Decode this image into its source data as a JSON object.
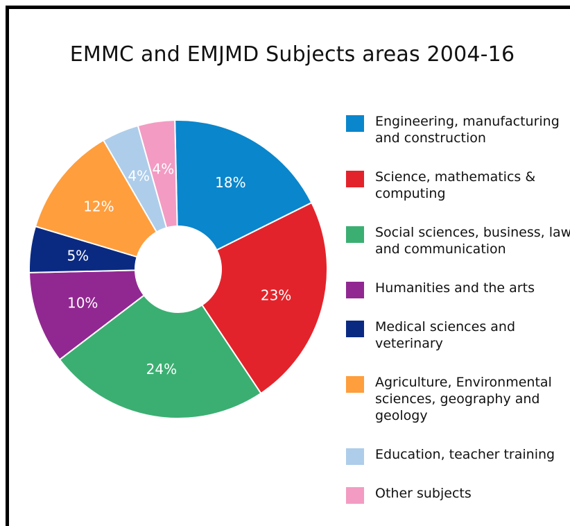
{
  "chart_data": {
    "type": "pie",
    "variant": "donut",
    "title": "EMMC and EMJMD Subjects areas 2004-16",
    "legend_position": "right",
    "series": [
      {
        "name": "Engineering, manufacturing and construction",
        "label": "18%",
        "value": 18,
        "color": "#0A86CC"
      },
      {
        "name": "Science, mathematics & computing",
        "label": "23%",
        "value": 23,
        "color": "#E3232B"
      },
      {
        "name": "Social sciences, business, law and communication",
        "label": "24%",
        "value": 24,
        "color": "#3BAF72"
      },
      {
        "name": "Humanities and the arts",
        "label": "10%",
        "value": 10,
        "color": "#912891"
      },
      {
        "name": "Medical sciences and veterinary",
        "label": "5%",
        "value": 5,
        "color": "#0A2A82"
      },
      {
        "name": "Agriculture, Environmental sciences, geography and geology",
        "label": "12%",
        "value": 12,
        "color": "#FF9E3D"
      },
      {
        "name": "Education, teacher training",
        "label": "4%",
        "value": 4,
        "color": "#AECDEA"
      },
      {
        "name": "Other subjects",
        "label": "4%",
        "value": 4,
        "color": "#F39BC3"
      }
    ]
  }
}
